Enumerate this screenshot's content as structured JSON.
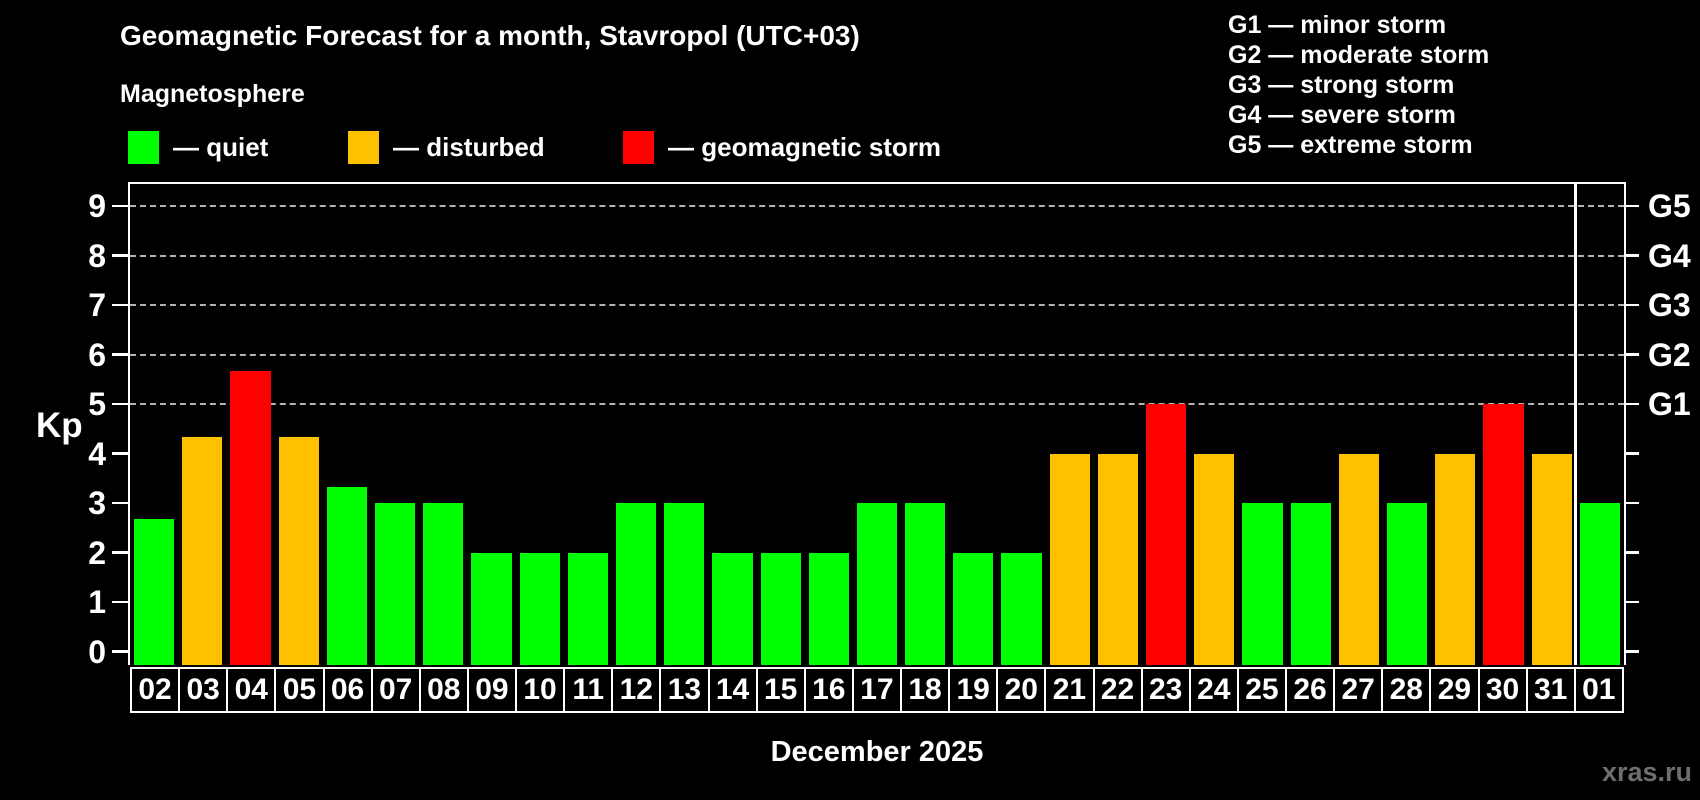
{
  "title": "Geomagnetic Forecast for a month, Stavropol (UTC+03)",
  "subtitle": "Magnetosphere",
  "legend": {
    "quiet": {
      "label": "— quiet"
    },
    "disturbed": {
      "label": "— disturbed"
    },
    "storm": {
      "label": "— geomagnetic storm"
    }
  },
  "g_legend": [
    "G1 — minor storm",
    "G2 — moderate storm",
    "G3 — strong storm",
    "G4 — severe storm",
    "G5 — extreme storm"
  ],
  "y_axis_label": "Kp",
  "x_axis_title": "December 2025",
  "watermark": "xras.ru",
  "colors": {
    "quiet": "#00ff00",
    "disturbed": "#ffc000",
    "storm": "#ff0000",
    "grid": "#b3b3b3",
    "axis": "#ffffff",
    "watermark": "#6e6e6e",
    "background": "#000000"
  },
  "chart_data": {
    "type": "bar",
    "title": "Geomagnetic Forecast for a month, Stavropol (UTC+03)",
    "xlabel": "December 2025",
    "ylabel": "Kp",
    "ylim": [
      0,
      9
    ],
    "y_ticks": [
      0,
      1,
      2,
      3,
      4,
      5,
      6,
      7,
      8,
      9
    ],
    "gridline_kp_levels": [
      5,
      6,
      7,
      8,
      9
    ],
    "grid": "dashed, only at storm levels G1–G5",
    "legend_position": "top",
    "categories": [
      "02",
      "03",
      "04",
      "05",
      "06",
      "07",
      "08",
      "09",
      "10",
      "11",
      "12",
      "13",
      "14",
      "15",
      "16",
      "17",
      "18",
      "19",
      "20",
      "21",
      "22",
      "23",
      "24",
      "25",
      "26",
      "27",
      "28",
      "29",
      "30",
      "31",
      "01"
    ],
    "values": [
      2.67,
      4.33,
      5.67,
      4.33,
      3.33,
      3,
      3,
      2,
      2,
      2,
      3,
      3,
      2,
      2,
      2,
      3,
      3,
      2,
      2,
      4,
      4,
      5,
      4,
      3,
      3,
      4,
      3,
      4,
      5,
      4,
      3
    ],
    "statuses": [
      "quiet",
      "disturbed",
      "storm",
      "disturbed",
      "quiet",
      "quiet",
      "quiet",
      "quiet",
      "quiet",
      "quiet",
      "quiet",
      "quiet",
      "quiet",
      "quiet",
      "quiet",
      "quiet",
      "quiet",
      "quiet",
      "quiet",
      "disturbed",
      "disturbed",
      "storm",
      "disturbed",
      "quiet",
      "quiet",
      "disturbed",
      "quiet",
      "disturbed",
      "storm",
      "disturbed",
      "quiet"
    ],
    "g_scale": [
      {
        "label": "G1",
        "kp": 5
      },
      {
        "label": "G2",
        "kp": 6
      },
      {
        "label": "G3",
        "kp": 7
      },
      {
        "label": "G4",
        "kp": 8
      },
      {
        "label": "G5",
        "kp": 9
      }
    ],
    "month_boundary_after_index": 29
  }
}
